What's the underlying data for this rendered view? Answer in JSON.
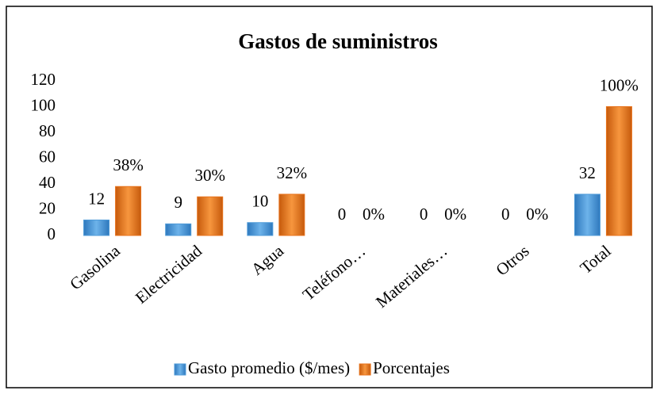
{
  "chart_data": {
    "type": "bar",
    "title": "Gastos de suministros",
    "categories": [
      "Gasolina",
      "Electricidad",
      "Agua",
      "Teléfono…",
      "Materiales…",
      "Otros",
      "Total"
    ],
    "series": [
      {
        "name": "Gasto promedio ($/mes)",
        "color": "#4f9bd8",
        "values": [
          12,
          9,
          10,
          0,
          0,
          0,
          32
        ]
      },
      {
        "name": "Porcentajes",
        "color": "#e8731c",
        "values": [
          38,
          30,
          32,
          0,
          0,
          0,
          100
        ],
        "value_labels": [
          "38%",
          "30%",
          "32%",
          "0%",
          "0%",
          "0%",
          "100%"
        ]
      }
    ],
    "ylim": [
      0,
      120
    ],
    "yticks": [
      0,
      20,
      40,
      60,
      80,
      100,
      120
    ],
    "grid": false,
    "legend": "bottom"
  }
}
